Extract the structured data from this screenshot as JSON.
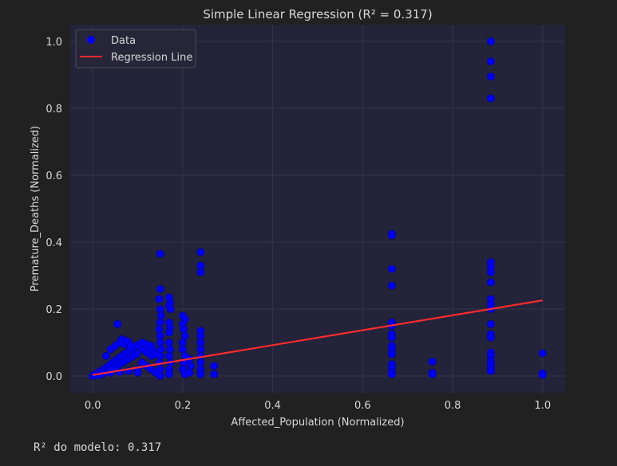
{
  "chart_data": {
    "type": "scatter",
    "title": "Simple Linear Regression (R² = 0.317)",
    "xlabel": "Affected_Population (Normalized)",
    "ylabel": "Premature_Deaths (Normalized)",
    "xlim": [
      -0.05,
      1.05
    ],
    "ylim": [
      -0.05,
      1.05
    ],
    "xticks": [
      "0.0",
      "0.2",
      "0.4",
      "0.6",
      "0.8",
      "1.0"
    ],
    "yticks": [
      "0.0",
      "0.2",
      "0.4",
      "0.6",
      "0.8",
      "1.0"
    ],
    "grid": true,
    "legend": {
      "position": "top-left",
      "entries": [
        "Data",
        "Regression Line"
      ]
    },
    "series": [
      {
        "name": "Data",
        "kind": "scatter",
        "color": "#0000ff",
        "points": [
          [
            0.0,
            0.0
          ],
          [
            0.003,
            0.004
          ],
          [
            0.006,
            0.002
          ],
          [
            0.01,
            0.008
          ],
          [
            0.012,
            0.003
          ],
          [
            0.015,
            0.012
          ],
          [
            0.018,
            0.006
          ],
          [
            0.02,
            0.016
          ],
          [
            0.022,
            0.009
          ],
          [
            0.025,
            0.02
          ],
          [
            0.028,
            0.012
          ],
          [
            0.03,
            0.025
          ],
          [
            0.033,
            0.015
          ],
          [
            0.035,
            0.03
          ],
          [
            0.038,
            0.018
          ],
          [
            0.04,
            0.035
          ],
          [
            0.042,
            0.022
          ],
          [
            0.045,
            0.04
          ],
          [
            0.048,
            0.026
          ],
          [
            0.05,
            0.045
          ],
          [
            0.052,
            0.03
          ],
          [
            0.055,
            0.05
          ],
          [
            0.058,
            0.034
          ],
          [
            0.06,
            0.055
          ],
          [
            0.062,
            0.038
          ],
          [
            0.065,
            0.06
          ],
          [
            0.068,
            0.042
          ],
          [
            0.07,
            0.065
          ],
          [
            0.072,
            0.046
          ],
          [
            0.075,
            0.07
          ],
          [
            0.078,
            0.05
          ],
          [
            0.08,
            0.075
          ],
          [
            0.082,
            0.054
          ],
          [
            0.085,
            0.08
          ],
          [
            0.088,
            0.058
          ],
          [
            0.09,
            0.085
          ],
          [
            0.092,
            0.062
          ],
          [
            0.095,
            0.09
          ],
          [
            0.098,
            0.066
          ],
          [
            0.1,
            0.092
          ],
          [
            0.03,
            0.06
          ],
          [
            0.04,
            0.08
          ],
          [
            0.05,
            0.09
          ],
          [
            0.06,
            0.1
          ],
          [
            0.07,
            0.095
          ],
          [
            0.08,
            0.1
          ],
          [
            0.055,
            0.155
          ],
          [
            0.065,
            0.11
          ],
          [
            0.075,
            0.105
          ],
          [
            0.085,
            0.09
          ],
          [
            0.11,
            0.08
          ],
          [
            0.115,
            0.095
          ],
          [
            0.12,
            0.07
          ],
          [
            0.125,
            0.085
          ],
          [
            0.13,
            0.06
          ],
          [
            0.135,
            0.075
          ],
          [
            0.14,
            0.065
          ],
          [
            0.11,
            0.1
          ],
          [
            0.12,
            0.095
          ],
          [
            0.13,
            0.09
          ],
          [
            0.11,
            0.04
          ],
          [
            0.12,
            0.03
          ],
          [
            0.13,
            0.02
          ],
          [
            0.14,
            0.01
          ],
          [
            0.1,
            0.02
          ],
          [
            0.02,
            0.005
          ],
          [
            0.04,
            0.01
          ],
          [
            0.06,
            0.012
          ],
          [
            0.08,
            0.015
          ],
          [
            0.1,
            0.01
          ],
          [
            0.15,
            0.365
          ],
          [
            0.15,
            0.26
          ],
          [
            0.148,
            0.23
          ],
          [
            0.15,
            0.2
          ],
          [
            0.152,
            0.18
          ],
          [
            0.15,
            0.16
          ],
          [
            0.148,
            0.14
          ],
          [
            0.15,
            0.12
          ],
          [
            0.15,
            0.1
          ],
          [
            0.152,
            0.08
          ],
          [
            0.15,
            0.06
          ],
          [
            0.148,
            0.04
          ],
          [
            0.15,
            0.02
          ],
          [
            0.15,
            0.0
          ],
          [
            0.17,
            0.235
          ],
          [
            0.172,
            0.22
          ],
          [
            0.17,
            0.21
          ],
          [
            0.173,
            0.2
          ],
          [
            0.17,
            0.16
          ],
          [
            0.172,
            0.145
          ],
          [
            0.17,
            0.13
          ],
          [
            0.17,
            0.1
          ],
          [
            0.172,
            0.08
          ],
          [
            0.17,
            0.06
          ],
          [
            0.173,
            0.04
          ],
          [
            0.17,
            0.02
          ],
          [
            0.17,
            0.005
          ],
          [
            0.2,
            0.18
          ],
          [
            0.205,
            0.17
          ],
          [
            0.2,
            0.155
          ],
          [
            0.202,
            0.14
          ],
          [
            0.205,
            0.12
          ],
          [
            0.2,
            0.1
          ],
          [
            0.2,
            0.08
          ],
          [
            0.205,
            0.06
          ],
          [
            0.202,
            0.04
          ],
          [
            0.2,
            0.02
          ],
          [
            0.205,
            0.005
          ],
          [
            0.215,
            0.05
          ],
          [
            0.218,
            0.03
          ],
          [
            0.215,
            0.01
          ],
          [
            0.24,
            0.37
          ],
          [
            0.24,
            0.33
          ],
          [
            0.24,
            0.31
          ],
          [
            0.24,
            0.135
          ],
          [
            0.24,
            0.12
          ],
          [
            0.24,
            0.1
          ],
          [
            0.24,
            0.08
          ],
          [
            0.24,
            0.06
          ],
          [
            0.24,
            0.04
          ],
          [
            0.24,
            0.02
          ],
          [
            0.24,
            0.005
          ],
          [
            0.27,
            0.03
          ],
          [
            0.27,
            0.005
          ],
          [
            0.665,
            0.425
          ],
          [
            0.665,
            0.42
          ],
          [
            0.665,
            0.32
          ],
          [
            0.665,
            0.27
          ],
          [
            0.665,
            0.16
          ],
          [
            0.665,
            0.15
          ],
          [
            0.665,
            0.125
          ],
          [
            0.665,
            0.115
          ],
          [
            0.665,
            0.09
          ],
          [
            0.665,
            0.08
          ],
          [
            0.665,
            0.065
          ],
          [
            0.665,
            0.035
          ],
          [
            0.665,
            0.025
          ],
          [
            0.665,
            0.012
          ],
          [
            0.665,
            0.005
          ],
          [
            0.755,
            0.043
          ],
          [
            0.755,
            0.01
          ],
          [
            0.755,
            0.005
          ],
          [
            0.885,
            1.0
          ],
          [
            0.885,
            0.94
          ],
          [
            0.885,
            0.895
          ],
          [
            0.885,
            0.83
          ],
          [
            0.885,
            0.34
          ],
          [
            0.885,
            0.325
          ],
          [
            0.885,
            0.31
          ],
          [
            0.885,
            0.28
          ],
          [
            0.885,
            0.23
          ],
          [
            0.885,
            0.215
          ],
          [
            0.885,
            0.2
          ],
          [
            0.885,
            0.155
          ],
          [
            0.885,
            0.125
          ],
          [
            0.885,
            0.115
          ],
          [
            0.885,
            0.07
          ],
          [
            0.885,
            0.06
          ],
          [
            0.885,
            0.045
          ],
          [
            0.885,
            0.035
          ],
          [
            0.885,
            0.025
          ],
          [
            0.885,
            0.015
          ],
          [
            1.0,
            0.068
          ],
          [
            1.0,
            0.008
          ],
          [
            1.0,
            0.003
          ]
        ]
      },
      {
        "name": "Regression Line",
        "kind": "line",
        "color": "#ff2a2a",
        "x": [
          0.0,
          1.0
        ],
        "y": [
          0.003,
          0.226
        ]
      }
    ]
  },
  "output_text": "R² do modelo: 0.317",
  "colors": {
    "figure_bg": "#212121",
    "axes_bg": "#23233a",
    "grid": "#34344c",
    "text": "#d8d8d8"
  }
}
